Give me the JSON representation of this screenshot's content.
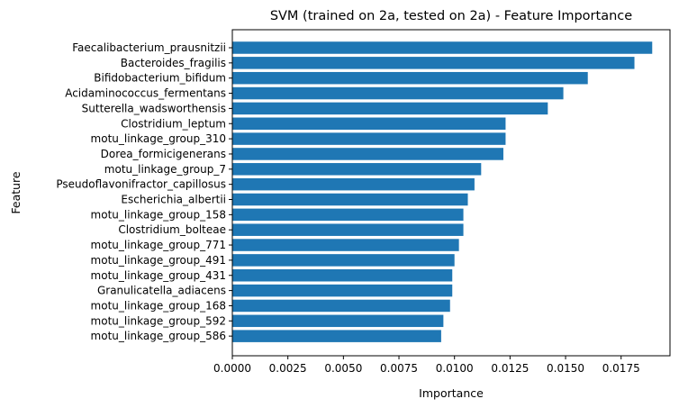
{
  "chart_data": {
    "type": "bar",
    "orientation": "horizontal",
    "title": "SVM (trained on 2a, tested on 2a) -  Feature Importance",
    "xlabel": "Importance",
    "ylabel": "Feature",
    "bar_color": "#1f77b4",
    "grid": false,
    "xlim": [
      0,
      0.0197
    ],
    "xticks": [
      "0.0000",
      "0.0025",
      "0.0050",
      "0.0075",
      "0.0100",
      "0.0125",
      "0.0150",
      "0.0175"
    ],
    "categories": [
      "Faecalibacterium_prausnitzii",
      "Bacteroides_fragilis",
      "Bifidobacterium_bifidum",
      "Acidaminococcus_fermentans",
      "Sutterella_wadsworthensis",
      "Clostridium_leptum",
      "motu_linkage_group_310",
      "Dorea_formicigenerans",
      "motu_linkage_group_7",
      "Pseudoflavonifractor_capillosus",
      "Escherichia_albertii",
      "motu_linkage_group_158",
      "Clostridium_bolteae",
      "motu_linkage_group_771",
      "motu_linkage_group_491",
      "motu_linkage_group_431",
      "Granulicatella_adiacens",
      "motu_linkage_group_168",
      "motu_linkage_group_592",
      "motu_linkage_group_586"
    ],
    "values": [
      0.0189,
      0.0181,
      0.016,
      0.0149,
      0.0142,
      0.0123,
      0.0123,
      0.0122,
      0.0112,
      0.0109,
      0.0106,
      0.0104,
      0.0104,
      0.0102,
      0.01,
      0.0099,
      0.0099,
      0.0098,
      0.0095,
      0.0094
    ]
  }
}
